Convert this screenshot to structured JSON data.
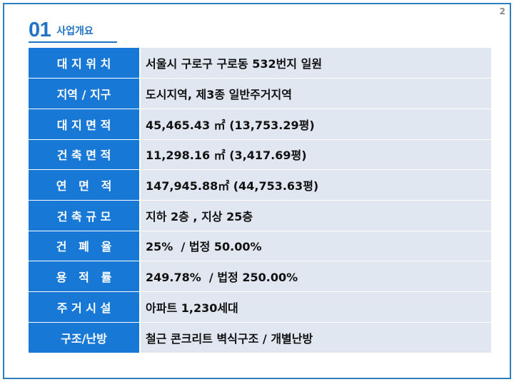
{
  "page": {
    "number": "2"
  },
  "section": {
    "number": "01",
    "title": "사업개요"
  },
  "table": {
    "rows": [
      {
        "label": "대 지 위 치",
        "value": "서울시 구로구 구로동 532번지 일원"
      },
      {
        "label": "지역 / 지구",
        "value": "도시지역, 제3종 일반주거지역"
      },
      {
        "label": "대 지 면 적",
        "value": "45,465.43 ㎡ (13,753.29평)"
      },
      {
        "label": "건 축 면 적",
        "value": "11,298.16 ㎡ (3,417.69평)"
      },
      {
        "label": "연   면   적",
        "value": "147,945.88㎡ (44,753.63평)"
      },
      {
        "label": "건 축 규 모",
        "value": "지하 2층 , 지상 25층"
      },
      {
        "label": "건   폐   율",
        "value": "25%  / 법정 50.00%"
      },
      {
        "label": "용   적   률",
        "value": "249.78%  / 법정 250.00%"
      },
      {
        "label": "주 거 시 설",
        "value": "아파트 1,230세대"
      },
      {
        "label": "구조/난방",
        "value": "철근 콘크리트 벽식구조 / 개별난방"
      }
    ]
  },
  "colors": {
    "accent": "#1f74c5",
    "label_bg": "#1878d6",
    "value_bg": "#e1e7f1",
    "frame": "#2b7fc0"
  }
}
